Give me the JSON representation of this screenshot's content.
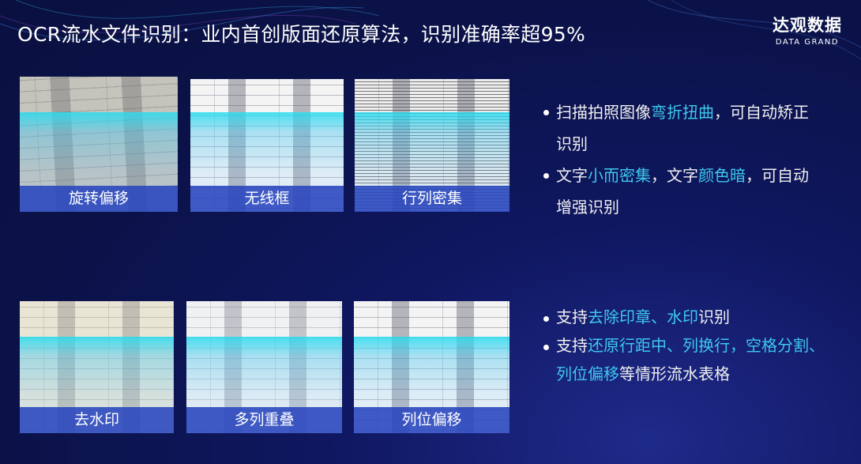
{
  "title": "OCR流水文件识别：业内首创版面还原算法，识别准确率超95%",
  "logo": {
    "cn": "达观数据",
    "en": "DATA GRAND"
  },
  "colors": {
    "highlight": "#3ec8ee",
    "label_bar": "#2846be",
    "background": "#0b1248"
  },
  "cards": [
    {
      "label": "旋转偏移"
    },
    {
      "label": "无线框"
    },
    {
      "label": "行列密集"
    },
    {
      "label": "去水印"
    },
    {
      "label": "多列重叠"
    },
    {
      "label": "列位偏移"
    }
  ],
  "bullets_top": [
    [
      {
        "t": "扫描拍照图像"
      },
      {
        "t": "弯折扭曲",
        "hl": true
      },
      {
        "t": "，可自动矫正识别"
      }
    ],
    [
      {
        "t": "文字"
      },
      {
        "t": "小而密集",
        "hl": true
      },
      {
        "t": "，文字"
      },
      {
        "t": "颜色暗",
        "hl": true
      },
      {
        "t": "，可自动增强识别"
      }
    ]
  ],
  "bullets_bottom": [
    [
      {
        "t": "支持"
      },
      {
        "t": "去除印章、水印",
        "hl": true
      },
      {
        "t": "识别"
      }
    ],
    [
      {
        "t": "支持"
      },
      {
        "t": "还原行距中、列换行，空格分割、列位偏移",
        "hl": true
      },
      {
        "t": "等情形流水表格"
      }
    ]
  ]
}
